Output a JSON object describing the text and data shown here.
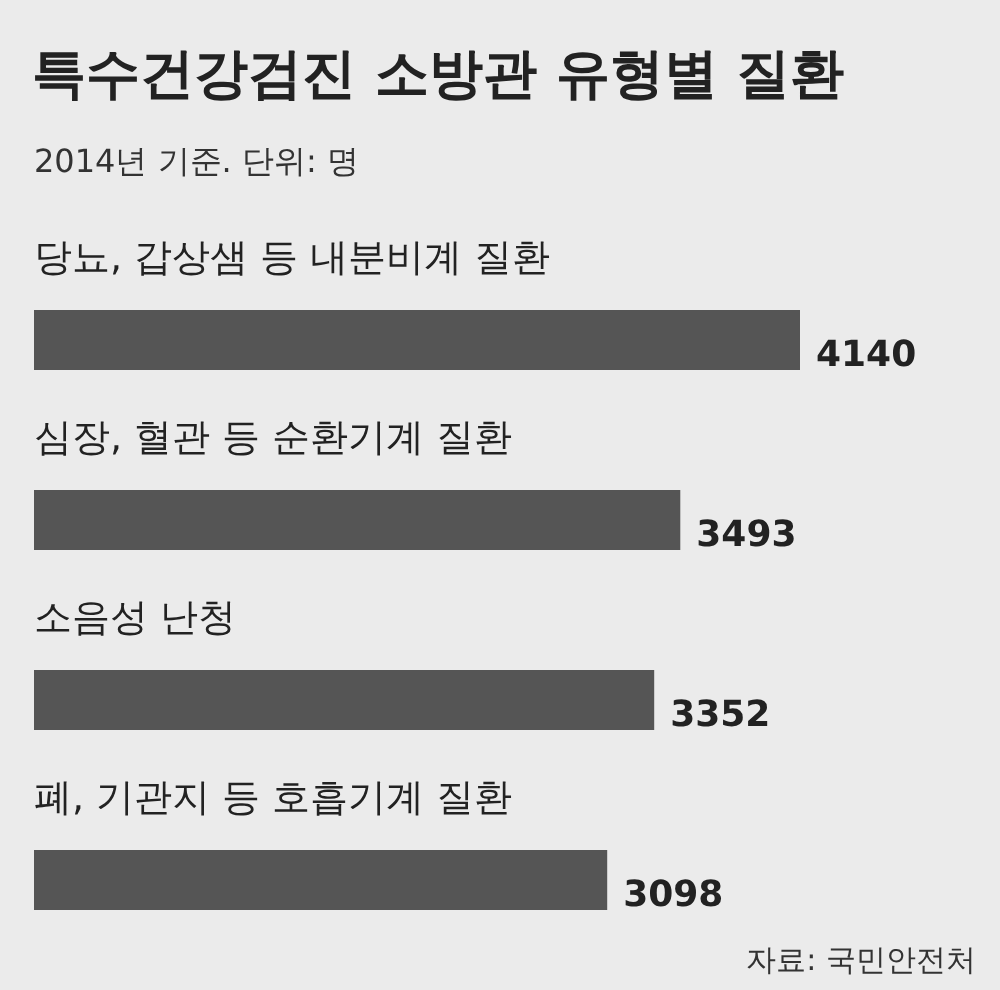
{
  "chart_data": {
    "type": "bar",
    "orientation": "horizontal",
    "title": "특수건강검진 소방관 유형별 질환",
    "subtitle": "2014년 기준. 단위: 명",
    "categories": [
      "당뇨, 갑상샘 등 내분비계 질환",
      "심장, 혈관 등 순환기계 질환",
      "소음성 난청",
      "폐, 기관지 등 호흡기계 질환"
    ],
    "values": [
      4140,
      3493,
      3352,
      3098
    ],
    "color": "#555555",
    "data_labels": true,
    "annotations": [
      "자료: 국민안전처"
    ]
  }
}
